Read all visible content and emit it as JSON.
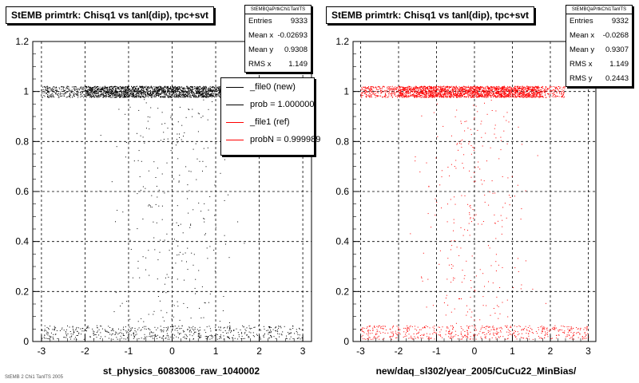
{
  "chart_data": [
    {
      "type": "scatter",
      "title": "StEMB primtrk: Chisq1 vs tanl(dip), tpc+svt",
      "xlabel": "st_physics_6083006_raw_1040002",
      "xlim": [
        -3.2,
        3.2
      ],
      "ylim": [
        0,
        1.2
      ],
      "x_ticks": [
        "-3",
        "-2",
        "-1",
        "0",
        "1",
        "2",
        "3"
      ],
      "y_ticks": [
        "0",
        "0.2",
        "0.4",
        "0.6",
        "0.8",
        "1",
        "1.2"
      ],
      "grid": true,
      "point_color": "#000000",
      "stats": {
        "name": "StEMBQaPrtkChi1TanlTS",
        "entries_label": "Entries",
        "entries": "9333",
        "meanx_label": "Mean x",
        "meanx": "-0.02693",
        "meany_label": "Mean y",
        "meany": "0.9308",
        "rmsx_label": "RMS x",
        "rmsx": "1.149"
      },
      "legend": {
        "placement": "right",
        "entries": [
          {
            "label": "_file0 (new)",
            "color": "#000000"
          },
          {
            "label": "prob = 1.000000",
            "color": "#000000"
          },
          {
            "label": "_file1 (ref)",
            "color": "#ff0000"
          },
          {
            "label": "probN = 0.999989",
            "color": "#ff0000"
          }
        ]
      },
      "footer": "StEMB 2 Chi1 TanlTS 2005"
    },
    {
      "type": "scatter",
      "title": "StEMB primtrk: Chisq1 vs tanl(dip), tpc+svt",
      "xlabel": "new/daq_sl302/year_2005/CuCu22_MinBias/",
      "xlim": [
        -3.2,
        3.2
      ],
      "ylim": [
        0,
        1.2
      ],
      "x_ticks": [
        "-3",
        "-2",
        "-1",
        "0",
        "1",
        "2",
        "3"
      ],
      "y_ticks": [
        "0",
        "0.2",
        "0.4",
        "0.6",
        "0.8",
        "1",
        "1.2"
      ],
      "grid": true,
      "point_color": "#ff0000",
      "stats": {
        "name": "StEMBQaPrtkChi1TanlTS",
        "entries_label": "Entries",
        "entries": "9332",
        "meanx_label": "Mean x",
        "meanx": "-0.0268",
        "meany_label": "Mean y",
        "meany": "0.9307",
        "rmsx_label": "RMS x",
        "rmsx": "1.149",
        "rmsy_label": "RMS y",
        "rmsy": "0.2443"
      }
    }
  ]
}
